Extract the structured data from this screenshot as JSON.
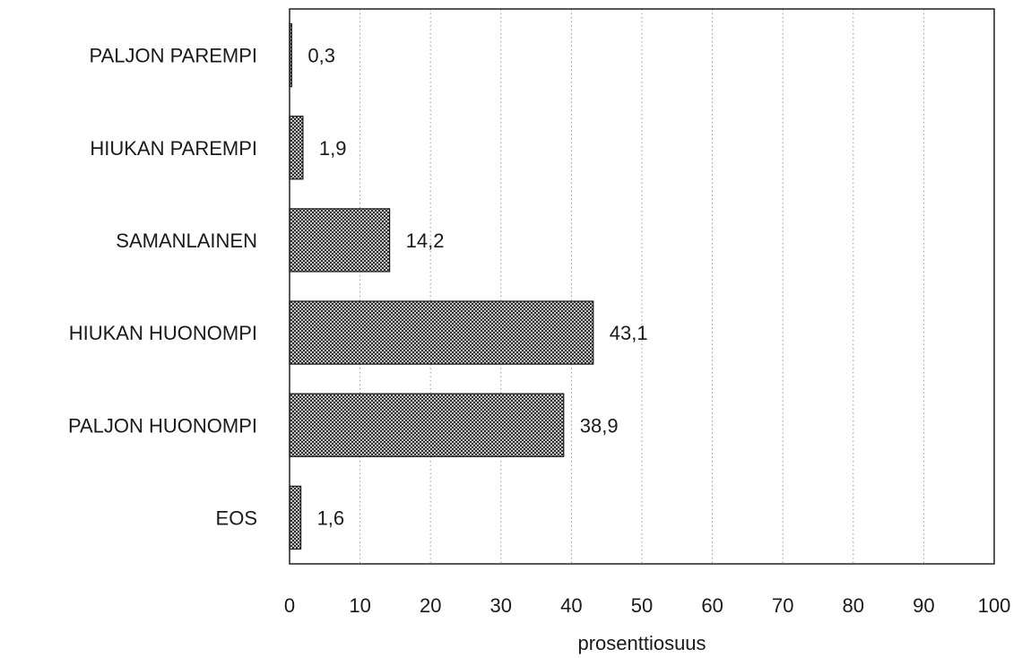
{
  "chart_data": {
    "type": "bar",
    "orientation": "horizontal",
    "categories": [
      "PALJON PAREMPI",
      "HIUKAN PAREMPI",
      "SAMANLAINEN",
      "HIUKAN HUONOMPI",
      "PALJON HUONOMPI",
      "EOS"
    ],
    "values": [
      0.3,
      1.9,
      14.2,
      43.1,
      38.9,
      1.6
    ],
    "value_labels": [
      "0,3",
      "1,9",
      "14,2",
      "43,1",
      "38,9",
      "1,6"
    ],
    "xlabel": "prosenttiosuus",
    "ylabel": "",
    "xlim": [
      0,
      100
    ],
    "x_ticks": [
      0,
      10,
      20,
      30,
      40,
      50,
      60,
      70,
      80,
      90,
      100
    ],
    "x_tick_labels": [
      "0",
      "10",
      "20",
      "30",
      "40",
      "50",
      "60",
      "70",
      "80",
      "90",
      "100"
    ],
    "grid": "vertical-dotted",
    "legend": "none",
    "bar_fill": "crosshatch",
    "colors": {
      "bar_dark": "#3a3a3a",
      "bar_light": "#bdbdbd",
      "axis": "#222222",
      "grid": "#9a9a9a"
    }
  }
}
